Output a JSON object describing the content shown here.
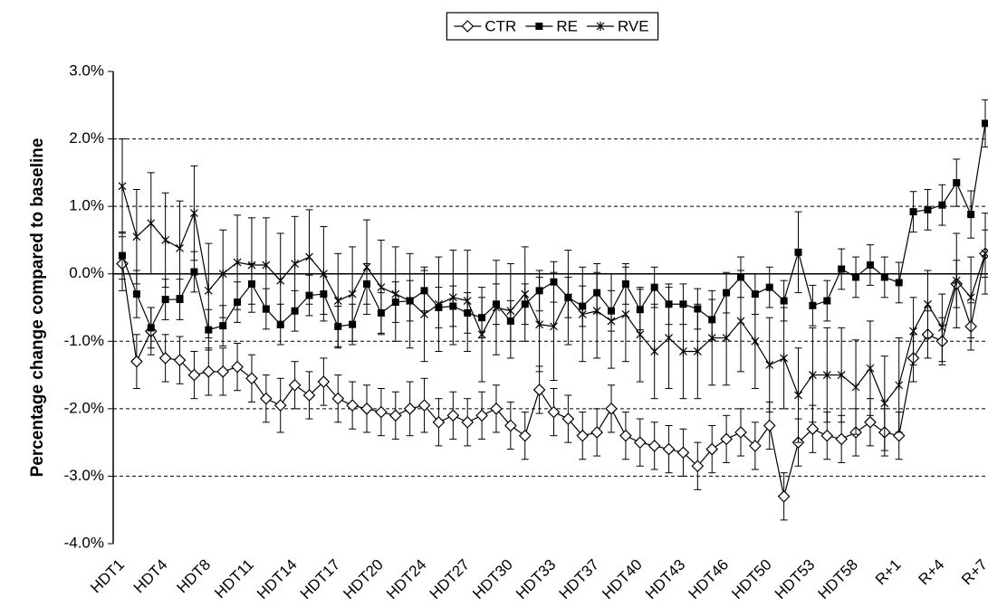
{
  "chart_data": {
    "type": "line",
    "y_label": "Percentage change compared to baseline",
    "legend": "top",
    "grid": true,
    "ylim": [
      -4,
      3
    ],
    "yticks": [
      {
        "value": -4,
        "label": "-4.0%"
      },
      {
        "value": -3,
        "label": "-3.0%"
      },
      {
        "value": -2,
        "label": "-2.0%"
      },
      {
        "value": -1,
        "label": "-1.0%"
      },
      {
        "value": 0,
        "label": "0.0%"
      },
      {
        "value": 1,
        "label": "1.0%"
      },
      {
        "value": 2,
        "label": "2.0%"
      },
      {
        "value": 3,
        "label": "3.0%"
      }
    ],
    "categories": [
      "HDT1",
      null,
      null,
      "HDT4",
      null,
      null,
      "HDT8",
      null,
      null,
      "HDT11",
      null,
      null,
      "HDT14",
      null,
      null,
      "HDT17",
      null,
      null,
      "HDT20",
      null,
      null,
      "HDT24",
      null,
      null,
      "HDT27",
      null,
      null,
      "HDT30",
      null,
      null,
      "HDT33",
      null,
      null,
      "HDT37",
      null,
      null,
      "HDT40",
      null,
      null,
      "HDT43",
      null,
      null,
      "HDT46",
      null,
      null,
      "HDT50",
      null,
      null,
      "HDT53",
      null,
      null,
      "HDT58",
      null,
      null,
      "R+1",
      null,
      null,
      "R+4",
      null,
      null,
      "R+7"
    ],
    "series": [
      {
        "name": "CTR",
        "color": "#000000",
        "marker": "diamond",
        "values": [
          0.15,
          -1.3,
          -0.85,
          -1.25,
          -1.28,
          -1.5,
          -1.45,
          -1.45,
          -1.38,
          -1.55,
          -1.85,
          -1.95,
          -1.65,
          -1.8,
          -1.6,
          -1.85,
          -1.95,
          -2.0,
          -2.05,
          -2.1,
          -2.0,
          -1.95,
          -2.2,
          -2.1,
          -2.2,
          -2.1,
          -2.0,
          -2.25,
          -2.4,
          -1.72,
          -2.05,
          -2.15,
          -2.4,
          -2.35,
          -2.0,
          -2.4,
          -2.5,
          -2.55,
          -2.6,
          -2.65,
          -2.85,
          -2.6,
          -2.45,
          -2.35,
          -2.55,
          -2.25,
          -3.3,
          -2.5,
          -2.3,
          -2.4,
          -2.45,
          -2.35,
          -2.2,
          -2.35,
          -2.4,
          -1.25,
          -0.9,
          -1.0,
          -0.15,
          -0.78,
          0.3
        ],
        "errors": [
          0.4,
          0.4,
          0.35,
          0.35,
          0.35,
          0.35,
          0.35,
          0.35,
          0.35,
          0.35,
          0.35,
          0.4,
          0.35,
          0.35,
          0.35,
          0.35,
          0.35,
          0.35,
          0.35,
          0.35,
          0.4,
          0.4,
          0.35,
          0.35,
          0.35,
          0.35,
          0.35,
          0.35,
          0.35,
          0.35,
          0.35,
          0.35,
          0.35,
          0.35,
          0.35,
          0.35,
          0.35,
          0.35,
          0.35,
          0.35,
          0.35,
          0.35,
          0.35,
          0.35,
          0.35,
          0.35,
          0.35,
          0.35,
          0.35,
          0.35,
          0.35,
          0.35,
          0.35,
          0.35,
          0.35,
          0.35,
          0.35,
          0.35,
          0.35,
          0.35,
          0.35
        ]
      },
      {
        "name": "RE",
        "color": "#000000",
        "marker": "square",
        "values": [
          0.27,
          -0.3,
          -0.8,
          -0.38,
          -0.38,
          0.03,
          -0.83,
          -0.77,
          -0.42,
          -0.15,
          -0.52,
          -0.75,
          -0.55,
          -0.32,
          -0.3,
          -0.78,
          -0.75,
          -0.15,
          -0.58,
          -0.42,
          -0.4,
          -0.25,
          -0.5,
          -0.48,
          -0.58,
          -0.65,
          -0.45,
          -0.7,
          -0.45,
          -0.25,
          -0.12,
          -0.35,
          -0.48,
          -0.28,
          -0.55,
          -0.15,
          -0.53,
          -0.2,
          -0.45,
          -0.45,
          -0.52,
          -0.68,
          -0.28,
          -0.05,
          -0.3,
          -0.2,
          -0.4,
          0.32,
          -0.47,
          -0.4,
          0.07,
          -0.05,
          0.13,
          -0.05,
          -0.13,
          0.92,
          0.95,
          1.02,
          1.35,
          0.88,
          2.23
        ],
        "errors": [
          0.35,
          0.35,
          0.3,
          0.3,
          0.3,
          0.3,
          0.3,
          0.3,
          0.3,
          0.3,
          0.3,
          0.3,
          0.3,
          0.3,
          0.3,
          0.3,
          0.3,
          0.3,
          0.3,
          0.3,
          0.3,
          0.3,
          0.3,
          0.3,
          0.3,
          0.3,
          0.3,
          0.3,
          0.3,
          0.3,
          0.3,
          0.3,
          0.3,
          0.3,
          0.3,
          0.3,
          0.3,
          0.3,
          0.3,
          0.3,
          0.3,
          0.3,
          0.3,
          0.3,
          0.3,
          0.3,
          0.3,
          0.6,
          0.3,
          0.3,
          0.3,
          0.3,
          0.3,
          0.3,
          0.3,
          0.3,
          0.3,
          0.3,
          0.35,
          0.35,
          0.35
        ]
      },
      {
        "name": "RVE",
        "color": "#000000",
        "marker": "cross",
        "values": [
          1.3,
          0.55,
          0.75,
          0.5,
          0.38,
          0.9,
          -0.25,
          0.0,
          0.17,
          0.13,
          0.13,
          -0.1,
          0.15,
          0.25,
          0.0,
          -0.4,
          -0.3,
          0.1,
          -0.2,
          -0.3,
          -0.4,
          -0.6,
          -0.45,
          -0.35,
          -0.4,
          -0.9,
          -0.5,
          -0.55,
          -0.3,
          -0.75,
          -0.78,
          -0.35,
          -0.6,
          -0.55,
          -0.7,
          -0.6,
          -0.9,
          -1.15,
          -0.95,
          -1.15,
          -1.15,
          -0.95,
          -0.95,
          -0.7,
          -1.0,
          -1.35,
          -1.25,
          -1.8,
          -1.5,
          -1.5,
          -1.5,
          -1.68,
          -1.4,
          -1.92,
          -1.65,
          -0.85,
          -0.45,
          -0.8,
          -0.1,
          -0.35,
          0.3
        ],
        "errors": [
          0.7,
          0.7,
          0.75,
          0.7,
          0.7,
          0.7,
          0.7,
          0.65,
          0.7,
          0.7,
          0.7,
          0.7,
          0.7,
          0.7,
          0.7,
          0.7,
          0.7,
          0.7,
          0.7,
          0.7,
          0.7,
          0.7,
          0.7,
          0.7,
          0.75,
          0.7,
          0.7,
          0.7,
          0.7,
          0.7,
          0.8,
          0.7,
          0.7,
          0.7,
          0.7,
          0.7,
          0.7,
          0.7,
          0.75,
          0.7,
          0.7,
          0.7,
          0.7,
          0.75,
          0.7,
          0.7,
          0.75,
          0.7,
          0.7,
          0.7,
          0.7,
          0.7,
          0.7,
          0.7,
          0.7,
          0.5,
          0.5,
          0.5,
          0.7,
          0.6,
          0.6
        ]
      }
    ]
  }
}
